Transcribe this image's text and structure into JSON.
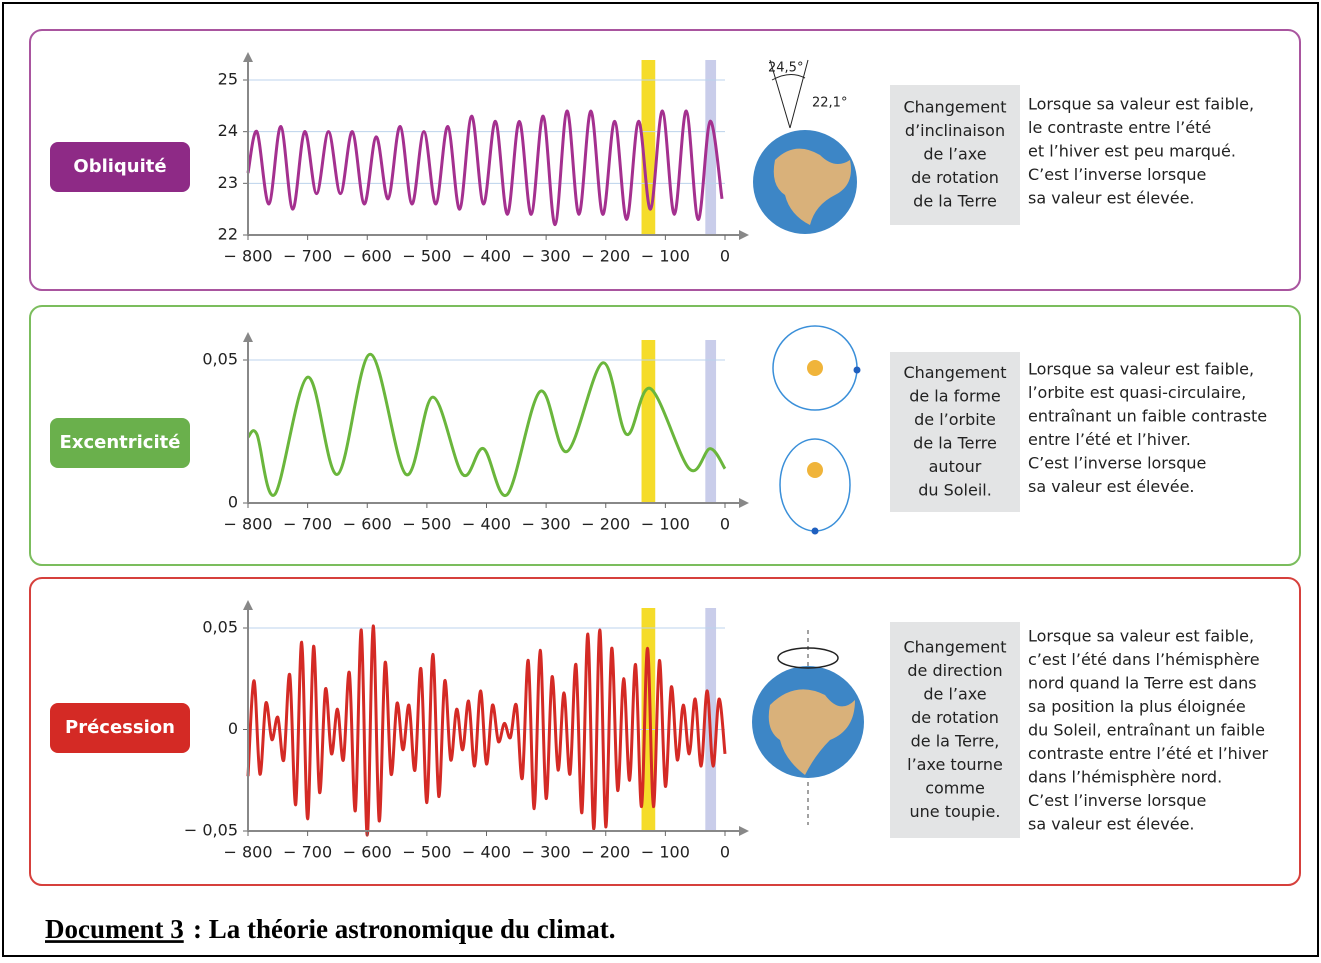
{
  "chart_data": [
    {
      "type": "line",
      "title": "Obliquité",
      "label_color": "#8e2a86",
      "border_color": "#a9559f",
      "color": "#a4308f",
      "x": [
        -800,
        -785,
        -765,
        -745,
        -725,
        -705,
        -685,
        -665,
        -645,
        -625,
        -605,
        -585,
        -565,
        -545,
        -525,
        -505,
        -485,
        -465,
        -445,
        -425,
        -405,
        -385,
        -365,
        -345,
        -325,
        -305,
        -285,
        -265,
        -245,
        -225,
        -205,
        -185,
        -165,
        -145,
        -125,
        -105,
        -85,
        -65,
        -45,
        -25,
        -5
      ],
      "values": [
        23.2,
        24.0,
        22.6,
        24.1,
        22.5,
        24.0,
        22.8,
        24.0,
        22.8,
        24.0,
        22.6,
        23.9,
        22.7,
        24.1,
        22.6,
        24.0,
        22.6,
        24.1,
        22.5,
        24.3,
        22.6,
        24.2,
        22.4,
        24.2,
        22.4,
        24.3,
        22.2,
        24.4,
        22.4,
        24.4,
        22.4,
        24.2,
        22.3,
        24.2,
        22.5,
        24.4,
        22.4,
        24.4,
        22.3,
        24.2,
        22.7
      ],
      "xlim": [
        -800,
        0
      ],
      "xticks": [
        {
          "value": -800,
          "label": "− 800"
        },
        {
          "value": -700,
          "label": "− 700"
        },
        {
          "value": -600,
          "label": "− 600"
        },
        {
          "value": -500,
          "label": "− 500"
        },
        {
          "value": -400,
          "label": "− 400"
        },
        {
          "value": -300,
          "label": "− 300"
        },
        {
          "value": -200,
          "label": "− 200"
        },
        {
          "value": -100,
          "label": "− 100"
        },
        0
      ],
      "ylim": [
        22,
        25
      ],
      "yticks": [
        22,
        23,
        24,
        25
      ],
      "grid": true,
      "highlights": [
        {
          "range": [
            -140,
            -117
          ],
          "color": "#f5dc2a"
        },
        {
          "range": [
            -33,
            -15
          ],
          "color": "#c9cdea"
        }
      ],
      "annotations": [
        "24,5°",
        "22,1°"
      ],
      "box_text": [
        "Changement",
        "d’inclinaison",
        "de l’axe",
        "de rotation",
        "de la Terre"
      ],
      "description": [
        "Lorsque sa valeur est faible,",
        "le contraste entre l’été",
        "et l’hiver est peu marqué.",
        "C’est l’inverse lorsque",
        "sa valeur est élevée."
      ]
    },
    {
      "type": "line",
      "title": "Excentricité",
      "label_color": "#6ab04c",
      "border_color": "#7bbd5d",
      "color": "#6ab63c",
      "x": [
        -800,
        -785,
        -755,
        -700,
        -650,
        -595,
        -535,
        -490,
        -440,
        -405,
        -365,
        -310,
        -265,
        -205,
        -165,
        -125,
        -60,
        -25,
        0
      ],
      "values": [
        0.023,
        0.024,
        0.003,
        0.044,
        0.01,
        0.052,
        0.01,
        0.037,
        0.01,
        0.019,
        0.003,
        0.039,
        0.018,
        0.049,
        0.024,
        0.04,
        0.012,
        0.019,
        0.012
      ],
      "xlim": [
        -800,
        0
      ],
      "xticks": [
        {
          "value": -800,
          "label": "− 800"
        },
        {
          "value": -700,
          "label": "− 700"
        },
        {
          "value": -600,
          "label": "− 600"
        },
        {
          "value": -500,
          "label": "− 500"
        },
        {
          "value": -400,
          "label": "− 400"
        },
        {
          "value": -300,
          "label": "− 300"
        },
        {
          "value": -200,
          "label": "− 200"
        },
        {
          "value": -100,
          "label": "− 100"
        },
        0
      ],
      "ylim": [
        0,
        0.05
      ],
      "yticks": [
        0,
        {
          "value": 0.05,
          "label": "0,05"
        }
      ],
      "grid": true,
      "highlights": [
        {
          "range": [
            -140,
            -117
          ],
          "color": "#f5dc2a"
        },
        {
          "range": [
            -33,
            -15
          ],
          "color": "#c9cdea"
        }
      ],
      "box_text": [
        "Changement",
        "de la forme",
        "de l’orbite",
        "de la Terre",
        "autour",
        "du Soleil."
      ],
      "description": [
        "Lorsque sa valeur est faible,",
        "l’orbite est quasi-circulaire,",
        "entraînant un faible contraste",
        "entre l’été et l’hiver.",
        "C’est l’inverse lorsque",
        "sa valeur est élevée."
      ]
    },
    {
      "type": "line",
      "title": "Précession",
      "label_color": "#d42a25",
      "border_color": "#d6403c",
      "color": "#d42a25",
      "x": [
        -800,
        -790,
        -780,
        -770,
        -760,
        -750,
        -740,
        -730,
        -720,
        -710,
        -700,
        -690,
        -680,
        -670,
        -660,
        -650,
        -640,
        -630,
        -620,
        -610,
        -600,
        -590,
        -580,
        -570,
        -560,
        -550,
        -540,
        -530,
        -520,
        -510,
        -500,
        -490,
        -480,
        -470,
        -460,
        -450,
        -440,
        -430,
        -420,
        -410,
        -400,
        -390,
        -380,
        -370,
        -360,
        -350,
        -340,
        -330,
        -320,
        -310,
        -300,
        -290,
        -280,
        -270,
        -260,
        -250,
        -240,
        -230,
        -220,
        -210,
        -200,
        -190,
        -180,
        -170,
        -160,
        -150,
        -140,
        -130,
        -120,
        -110,
        -100,
        -90,
        -80,
        -70,
        -60,
        -50,
        -40,
        -30,
        -20,
        -10,
        0
      ],
      "values": [
        -0.023,
        0.024,
        -0.022,
        0.013,
        -0.005,
        0.006,
        -0.015,
        0.027,
        -0.037,
        0.043,
        -0.044,
        0.041,
        -0.031,
        0.02,
        -0.012,
        0.01,
        -0.015,
        0.028,
        -0.04,
        0.049,
        -0.052,
        0.051,
        -0.045,
        0.033,
        -0.022,
        0.013,
        -0.01,
        0.012,
        -0.02,
        0.03,
        -0.036,
        0.037,
        -0.033,
        0.024,
        -0.015,
        0.01,
        -0.01,
        0.014,
        -0.018,
        0.019,
        -0.017,
        0.012,
        -0.006,
        0.003,
        -0.004,
        0.012,
        -0.024,
        0.034,
        -0.039,
        0.039,
        -0.034,
        0.026,
        -0.02,
        0.018,
        -0.022,
        0.032,
        -0.041,
        0.047,
        -0.049,
        0.049,
        -0.048,
        0.04,
        -0.03,
        0.025,
        -0.025,
        0.032,
        -0.038,
        0.04,
        -0.038,
        0.034,
        -0.028,
        0.021,
        -0.015,
        0.012,
        -0.012,
        0.015,
        -0.018,
        0.019,
        -0.018,
        0.015,
        -0.012
      ],
      "xlim": [
        -800,
        0
      ],
      "xticks": [
        {
          "value": -800,
          "label": "− 800"
        },
        {
          "value": -700,
          "label": "− 700"
        },
        {
          "value": -600,
          "label": "− 600"
        },
        {
          "value": -500,
          "label": "− 500"
        },
        {
          "value": -400,
          "label": "− 400"
        },
        {
          "value": -300,
          "label": "− 300"
        },
        {
          "value": -200,
          "label": "− 200"
        },
        {
          "value": -100,
          "label": "− 100"
        },
        0
      ],
      "ylim": [
        -0.05,
        0.05
      ],
      "yticks": [
        {
          "value": -0.05,
          "label": "− 0,05"
        },
        0,
        {
          "value": 0.05,
          "label": "0,05"
        }
      ],
      "grid": true,
      "highlights": [
        {
          "range": [
            -140,
            -117
          ],
          "color": "#f5dc2a"
        },
        {
          "range": [
            -33,
            -15
          ],
          "color": "#c9cdea"
        }
      ],
      "box_text": [
        "Changement",
        "de direction",
        "de l’axe",
        "de rotation",
        "de la Terre,",
        "l’axe tourne",
        "comme",
        "une toupie."
      ],
      "description": [
        "Lorsque sa valeur est faible,",
        "c’est l’été dans l’hémisphère",
        "nord quand la Terre est dans",
        "sa position la plus éloignée",
        "du Soleil, entraînant un faible",
        "contraste entre l’été et l’hiver",
        "dans l’hémisphère nord.",
        "C’est l’inverse lorsque",
        "sa valeur est élevée."
      ]
    }
  ],
  "caption": {
    "label": "Document 3",
    "text": " : La théorie astronomique du climat."
  }
}
